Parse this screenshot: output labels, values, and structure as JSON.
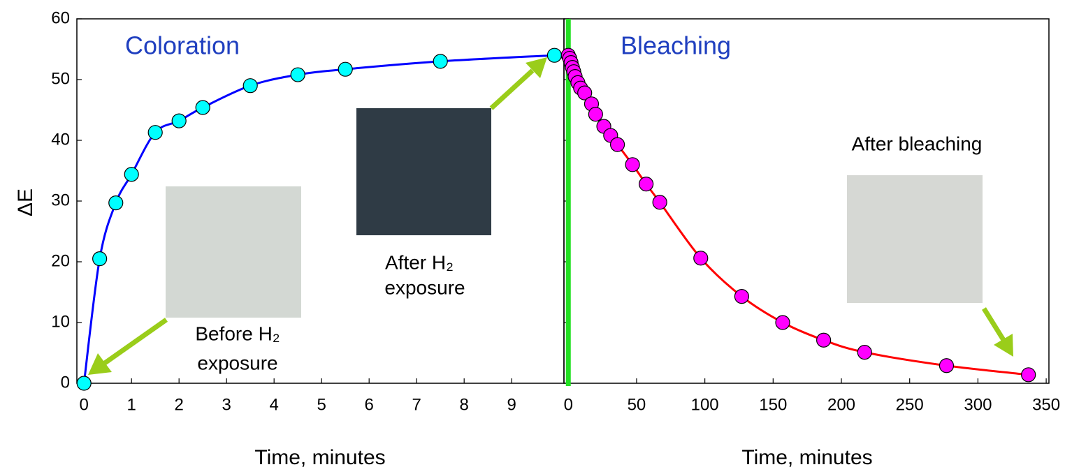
{
  "chart_data": [
    {
      "type": "line",
      "title": "Coloration",
      "xlabel": "Time, minutes",
      "ylabel": "ΔE",
      "x": [
        0,
        0.33,
        0.67,
        1,
        1.5,
        2,
        2.5,
        3.5,
        4.5,
        5.5,
        7.5,
        9.9
      ],
      "values": [
        0,
        20.5,
        29.7,
        34.4,
        41.3,
        43.2,
        45.4,
        49,
        50.8,
        51.7,
        53,
        54
      ],
      "color": "#0000ff",
      "marker_color": "#00ffff",
      "xlim": [
        -0.15,
        10.1
      ],
      "ylim": [
        0,
        60
      ],
      "xticks": [
        0,
        1,
        2,
        3,
        4,
        5,
        6,
        7,
        8,
        9
      ],
      "yticks": [
        0,
        10,
        20,
        30,
        40,
        50,
        60
      ],
      "annotations": [
        [
          "Before H₂",
          "exposure"
        ],
        [
          "After H₂",
          "exposure"
        ]
      ]
    },
    {
      "type": "line",
      "title": "Bleaching",
      "xlabel": "Time, minutes",
      "x": [
        0,
        1,
        2,
        3,
        4,
        5,
        7,
        9,
        12,
        17,
        20,
        26,
        31,
        36,
        47,
        57,
        67,
        97,
        127,
        157,
        187,
        217,
        277,
        337
      ],
      "values": [
        54,
        53.5,
        52.8,
        52,
        51.3,
        50.5,
        49.5,
        48.6,
        47.8,
        46,
        44.3,
        42.3,
        40.8,
        39.3,
        36,
        32.8,
        29.8,
        20.6,
        14.3,
        10,
        7.1,
        5.1,
        2.9,
        1.4
      ],
      "color": "#ff0000",
      "marker_color": "#ff00ff",
      "xlim": [
        -3.2,
        352
      ],
      "ylim": [
        0,
        60
      ],
      "xticks": [
        0,
        50,
        100,
        150,
        200,
        250,
        300,
        350
      ],
      "yticks": [
        0,
        10,
        20,
        30,
        40,
        50,
        60
      ],
      "annotations": [
        [
          "After bleaching"
        ]
      ]
    }
  ]
}
